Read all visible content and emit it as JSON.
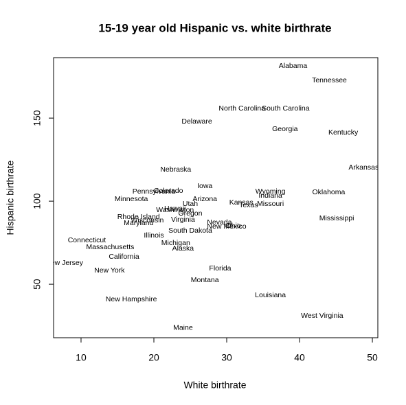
{
  "chart_data": {
    "type": "scatter",
    "title": "15-19 year old Hispanic vs. white birthrate",
    "x_label": "White birthrate",
    "y_label": "Hispanic birthrate",
    "color": "#000000",
    "labels": [
      "Alabama",
      "Tennessee",
      "North Carolina",
      "South Carolina",
      "Delaware",
      "Georgia",
      "Kentucky",
      "Nebraska",
      "Arkansas",
      "Iowa",
      "Pennsylvania",
      "Colorado",
      "Wyoming",
      "Indiana",
      "Oklahoma",
      "Minnesota",
      "Arizona",
      "Kansas",
      "Missouri",
      "Utah",
      "Texas",
      "Hawaii",
      "Washington",
      "Oregon",
      "Rhode Island",
      "Virginia",
      "Wisconsin",
      "Mississippi",
      "Maryland",
      "Nevada",
      "New Mexico",
      "Ohio",
      "South Dakota",
      "Illinois",
      "Connecticut",
      "Michigan",
      "Massachusetts",
      "Alaska",
      "California",
      "New Jersey",
      "New York",
      "Florida",
      "Montana",
      "Louisiana",
      "New Hampshire",
      "West Virginia",
      "Maine"
    ],
    "x": [
      39.1,
      44.1,
      32.1,
      38.1,
      25.9,
      38.0,
      46.0,
      23.0,
      48.8,
      27.0,
      20.0,
      22.0,
      36.0,
      36.0,
      44.0,
      16.9,
      27.0,
      32.0,
      36.0,
      25.0,
      33.0,
      22.9,
      22.9,
      25.0,
      17.9,
      24.0,
      19.1,
      45.1,
      17.9,
      29.0,
      30.0,
      30.9,
      25.0,
      20.0,
      10.8,
      23.0,
      14.0,
      24.0,
      15.9,
      7.7,
      13.9,
      29.1,
      27.0,
      36.0,
      16.9,
      43.1,
      24.0
    ],
    "values": [
      181.4,
      172.7,
      155.8,
      155.8,
      147.9,
      143.4,
      141.3,
      119.0,
      120.2,
      109.1,
      105.8,
      106.2,
      105.8,
      103.3,
      105.4,
      101.2,
      101.2,
      99.2,
      98.3,
      98.3,
      97.5,
      95.5,
      94.6,
      92.6,
      90.5,
      88.8,
      88.4,
      89.7,
      86.8,
      87.2,
      84.7,
      85.1,
      82.2,
      79.3,
      76.4,
      74.8,
      72.3,
      71.5,
      66.5,
      62.8,
      58.3,
      59.5,
      52.5,
      43.4,
      40.9,
      31.0,
      23.6
    ],
    "xlim": [
      6.23,
      50.75
    ],
    "ylim": [
      17.8,
      186.4
    ],
    "xticks": [
      10,
      20,
      30,
      40,
      50
    ],
    "yticks": [
      50,
      100,
      150
    ]
  }
}
